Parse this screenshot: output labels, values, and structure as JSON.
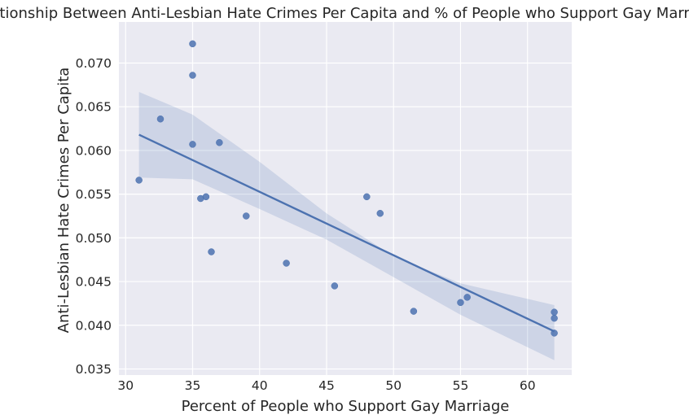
{
  "chart_data": {
    "type": "scatter",
    "title": "Relationship Between Anti-Lesbian Hate Crimes Per Capita and % of People who Support Gay Marriage",
    "xlabel": "Percent of People who Support Gay Marriage",
    "ylabel": "Anti-Lesbian Hate Crimes Per Capita",
    "xlim": [
      29.5,
      63.3
    ],
    "ylim": [
      0.0343,
      0.0747
    ],
    "x_ticks": [
      30,
      35,
      40,
      45,
      50,
      55,
      60
    ],
    "x_tick_labels": [
      "30",
      "35",
      "40",
      "45",
      "50",
      "55",
      "60"
    ],
    "y_ticks": [
      0.035,
      0.04,
      0.045,
      0.05,
      0.055,
      0.06,
      0.065,
      0.07
    ],
    "y_tick_labels": [
      "0.035",
      "0.040",
      "0.045",
      "0.050",
      "0.055",
      "0.060",
      "0.065",
      "0.070"
    ],
    "grid": true,
    "background_color": "#eaeaf2",
    "grid_color": "#ffffff",
    "point_color": "#4c72b0",
    "points": [
      {
        "x": 31.0,
        "y": 0.0566
      },
      {
        "x": 32.6,
        "y": 0.0636
      },
      {
        "x": 35.0,
        "y": 0.0722
      },
      {
        "x": 35.0,
        "y": 0.0686
      },
      {
        "x": 35.0,
        "y": 0.0607
      },
      {
        "x": 35.6,
        "y": 0.0545
      },
      {
        "x": 36.0,
        "y": 0.0547
      },
      {
        "x": 36.4,
        "y": 0.0484
      },
      {
        "x": 37.0,
        "y": 0.0609
      },
      {
        "x": 39.0,
        "y": 0.0525
      },
      {
        "x": 42.0,
        "y": 0.0471
      },
      {
        "x": 45.6,
        "y": 0.0445
      },
      {
        "x": 48.0,
        "y": 0.0547
      },
      {
        "x": 49.0,
        "y": 0.0528
      },
      {
        "x": 51.5,
        "y": 0.0416
      },
      {
        "x": 55.0,
        "y": 0.0426
      },
      {
        "x": 55.5,
        "y": 0.0432
      },
      {
        "x": 62.0,
        "y": 0.0415
      },
      {
        "x": 62.0,
        "y": 0.0408
      },
      {
        "x": 62.0,
        "y": 0.0391
      }
    ],
    "regression": {
      "x": [
        31.0,
        62.0
      ],
      "y": [
        0.0618,
        0.0393
      ],
      "ci_upper": [
        [
          31.0,
          0.0667
        ],
        [
          35.0,
          0.0641
        ],
        [
          40.0,
          0.0587
        ],
        [
          45.0,
          0.0528
        ],
        [
          50.0,
          0.0479
        ],
        [
          55.0,
          0.0448
        ],
        [
          62.0,
          0.0423
        ]
      ],
      "ci_lower": [
        [
          31.0,
          0.0569
        ],
        [
          35.0,
          0.0567
        ],
        [
          40.0,
          0.0533
        ],
        [
          45.0,
          0.0498
        ],
        [
          50.0,
          0.0455
        ],
        [
          55.0,
          0.0412
        ],
        [
          62.0,
          0.036
        ]
      ]
    }
  }
}
